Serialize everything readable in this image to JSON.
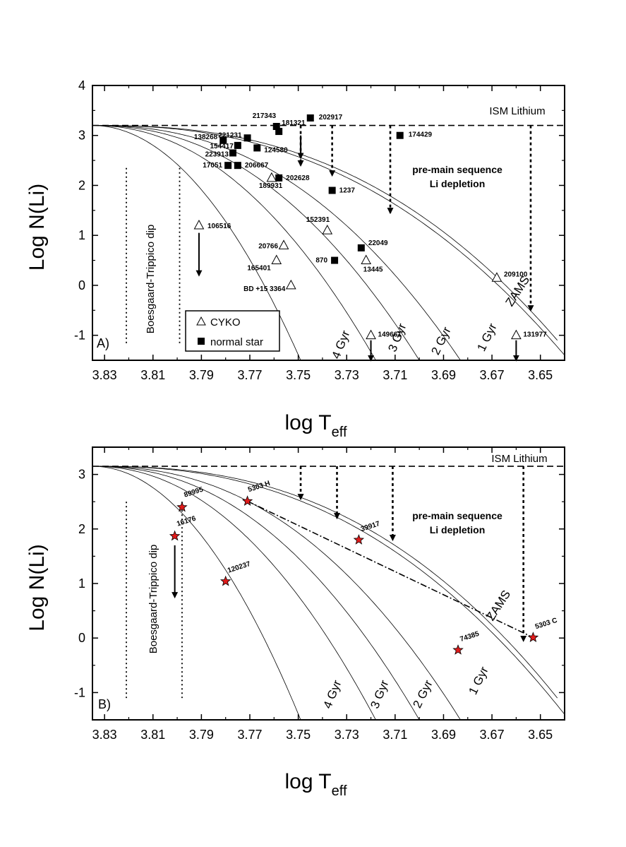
{
  "chart_data": [
    {
      "type": "scatter",
      "panel_label": "A)",
      "xlabel_main": "log T",
      "xlabel_sub": "eff",
      "ylabel": "Log N(Li)",
      "xlim": [
        3.835,
        3.64
      ],
      "ylim": [
        -1.5,
        4
      ],
      "xticks": [
        "3.83",
        "3.81",
        "3.79",
        "3.77",
        "3.75",
        "3.73",
        "3.71",
        "3.69",
        "3.67",
        "3.65"
      ],
      "yticks": [
        "4",
        "3",
        "2",
        "1",
        "0",
        "-1"
      ],
      "ism_label": "ISM Lithium",
      "ism_level": 3.2,
      "dip_label": "Boesgaard-Trippico dip",
      "dip_x": [
        3.821,
        3.799
      ],
      "depletion_label": [
        "pre-main sequence",
        "Li depletion"
      ],
      "depletion_arrows": [
        [
          3.749,
          3.2,
          2.4
        ],
        [
          3.736,
          3.2,
          2.2
        ],
        [
          3.712,
          3.2,
          1.45
        ],
        [
          3.654,
          3.2,
          -0.5
        ]
      ],
      "isochrones": [
        "4 Gyr",
        "3 Gyr",
        "2 Gyr",
        "1 Gyr",
        "ZAMS"
      ],
      "legend": {
        "cyko": "CYKO",
        "normal": "normal star"
      },
      "series": [
        {
          "name": "normal star",
          "points": [
            {
              "id": "217343",
              "x": 3.759,
              "y": 3.18
            },
            {
              "id": "202917",
              "x": 3.745,
              "y": 3.35
            },
            {
              "id": "181321",
              "x": 3.758,
              "y": 3.08
            },
            {
              "id": "174429",
              "x": 3.708,
              "y": 3.0
            },
            {
              "id": "138268",
              "x": 3.781,
              "y": 2.9
            },
            {
              "id": "221231",
              "x": 3.771,
              "y": 2.95
            },
            {
              "id": "154417",
              "x": 3.775,
              "y": 2.8
            },
            {
              "id": "124580",
              "x": 3.767,
              "y": 2.75
            },
            {
              "id": "223913",
              "x": 3.777,
              "y": 2.65
            },
            {
              "id": "17051",
              "x": 3.779,
              "y": 2.4
            },
            {
              "id": "206667",
              "x": 3.775,
              "y": 2.4
            },
            {
              "id": "202628",
              "x": 3.758,
              "y": 2.15
            },
            {
              "id": "1237",
              "x": 3.736,
              "y": 1.9
            },
            {
              "id": "22049",
              "x": 3.724,
              "y": 0.75
            },
            {
              "id": "870",
              "x": 3.735,
              "y": 0.5
            }
          ]
        },
        {
          "name": "CYKO",
          "points": [
            {
              "id": "189931",
              "x": 3.761,
              "y": 2.15
            },
            {
              "id": "106516",
              "x": 3.791,
              "y": 1.2
            },
            {
              "id": "152391",
              "x": 3.738,
              "y": 1.1
            },
            {
              "id": "20766",
              "x": 3.756,
              "y": 0.8
            },
            {
              "id": "165401",
              "x": 3.759,
              "y": 0.5
            },
            {
              "id": "13445",
              "x": 3.722,
              "y": 0.5
            },
            {
              "id": "BD +15 3364",
              "x": 3.753,
              "y": 0.0
            },
            {
              "id": "209100",
              "x": 3.668,
              "y": 0.15
            },
            {
              "id": "149661",
              "x": 3.72,
              "y": -1.0
            },
            {
              "id": "131977",
              "x": 3.66,
              "y": -1.0
            }
          ]
        }
      ]
    },
    {
      "type": "scatter",
      "panel_label": "B)",
      "xlabel_main": "log T",
      "xlabel_sub": "eff",
      "ylabel": "Log N(Li)",
      "xlim": [
        3.835,
        3.64
      ],
      "ylim": [
        -1.5,
        3.5
      ],
      "xticks": [
        "3.83",
        "3.81",
        "3.79",
        "3.77",
        "3.75",
        "3.73",
        "3.71",
        "3.69",
        "3.67",
        "3.65"
      ],
      "yticks": [
        "3",
        "2",
        "1",
        "0",
        "-1"
      ],
      "ism_label": "ISM Lithium",
      "ism_level": 3.15,
      "dip_label": "Boesgaard-Trippico dip",
      "dip_x": [
        3.821,
        3.798
      ],
      "depletion_label": [
        "pre-main sequence",
        "Li depletion"
      ],
      "depletion_arrows": [
        [
          3.749,
          3.15,
          2.55
        ],
        [
          3.734,
          3.15,
          2.2
        ],
        [
          3.711,
          3.15,
          1.8
        ],
        [
          3.657,
          3.15,
          -0.05
        ]
      ],
      "isochrones": [
        "4 Gyr",
        "3 Gyr",
        "2 Gyr",
        "1 Gyr",
        "ZAMS"
      ],
      "series": [
        {
          "name": "star",
          "points": [
            {
              "id": "89995",
              "x": 3.798,
              "y": 2.4
            },
            {
              "id": "16176",
              "x": 3.801,
              "y": 1.87
            },
            {
              "id": "5303 H",
              "x": 3.771,
              "y": 2.51
            },
            {
              "id": "39917",
              "x": 3.725,
              "y": 1.8
            },
            {
              "id": "120237",
              "x": 3.78,
              "y": 1.04
            },
            {
              "id": "74385",
              "x": 3.684,
              "y": -0.22
            },
            {
              "id": "5303 C",
              "x": 3.653,
              "y": 0.01
            }
          ]
        }
      ],
      "binary_link": [
        "5303 H",
        "5303 C"
      ]
    }
  ]
}
